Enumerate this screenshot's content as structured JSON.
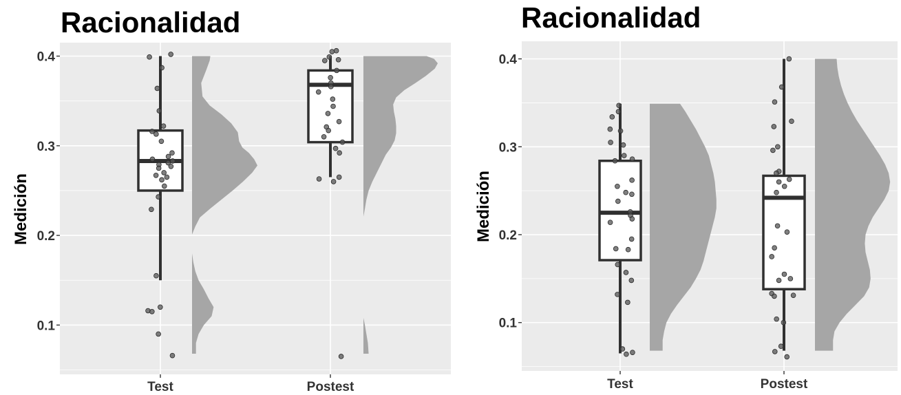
{
  "chart_data": [
    {
      "type": "raincloud",
      "title": "Racionalidad",
      "ylabel": "Medición",
      "xlabel": "",
      "ylim": [
        0.045,
        0.415
      ],
      "yticks": [
        0.1,
        0.2,
        0.3,
        0.4
      ],
      "ytick_labels": [
        "0.1",
        "0.2",
        "0.3",
        "0.4"
      ],
      "grid": true,
      "legend": "none",
      "categories": [
        "Test",
        "Postest"
      ],
      "colors": {
        "panel": "#ebebeb",
        "grid": "#ffffff",
        "density": "#a6a6a6",
        "box": "#ffffff",
        "box_stroke": "#303030",
        "point": "#555555"
      },
      "boxes": [
        {
          "category": "Test",
          "whisker_low": 0.15,
          "q1": 0.25,
          "median": 0.283,
          "q3": 0.317,
          "whisker_high": 0.4
        },
        {
          "category": "Postest",
          "whisker_low": 0.265,
          "q1": 0.304,
          "median": 0.368,
          "q3": 0.384,
          "whisker_high": 0.4
        }
      ],
      "points": [
        [
          0.402,
          0.399,
          0.387,
          0.364,
          0.339,
          0.322,
          0.316,
          0.313,
          0.305,
          0.292,
          0.288,
          0.285,
          0.283,
          0.281,
          0.279,
          0.277,
          0.275,
          0.27,
          0.267,
          0.265,
          0.262,
          0.255,
          0.243,
          0.229,
          0.155,
          0.12,
          0.116,
          0.115,
          0.09,
          0.066
        ],
        [
          0.406,
          0.405,
          0.399,
          0.395,
          0.396,
          0.384,
          0.376,
          0.37,
          0.366,
          0.36,
          0.352,
          0.344,
          0.336,
          0.327,
          0.321,
          0.317,
          0.31,
          0.304,
          0.297,
          0.292,
          0.265,
          0.263,
          0.26,
          0.065
        ]
      ],
      "densities": [
        {
          "category": "Test",
          "segments": [
            {
              "y": [
                0.4,
                0.395,
                0.385,
                0.37,
                0.355,
                0.345,
                0.335,
                0.325,
                0.315,
                0.305,
                0.298,
                0.292,
                0.285,
                0.278,
                0.27,
                0.26,
                0.25,
                0.24,
                0.23,
                0.22,
                0.21,
                0.201
              ],
              "w": [
                0.28,
                0.27,
                0.22,
                0.14,
                0.16,
                0.27,
                0.45,
                0.6,
                0.7,
                0.72,
                0.77,
                0.87,
                0.95,
                1.0,
                0.92,
                0.78,
                0.62,
                0.45,
                0.28,
                0.12,
                0.05,
                0.0
              ]
            },
            {
              "y": [
                0.18,
                0.17,
                0.16,
                0.15,
                0.14,
                0.13,
                0.12,
                0.11,
                0.1,
                0.09,
                0.08,
                0.068
              ],
              "w": [
                0.0,
                0.02,
                0.05,
                0.1,
                0.18,
                0.25,
                0.33,
                0.3,
                0.18,
                0.1,
                0.06,
                0.06
              ]
            }
          ]
        },
        {
          "category": "Postest",
          "segments": [
            {
              "y": [
                0.4,
                0.397,
                0.392,
                0.386,
                0.378,
                0.37,
                0.362,
                0.354,
                0.346,
                0.338,
                0.33,
                0.322,
                0.314,
                0.306,
                0.298,
                0.29,
                0.28,
                0.27,
                0.26,
                0.25,
                0.24,
                0.23,
                0.221
              ],
              "w": [
                0.85,
                0.95,
                1.0,
                0.96,
                0.84,
                0.7,
                0.55,
                0.44,
                0.4,
                0.41,
                0.43,
                0.44,
                0.44,
                0.42,
                0.37,
                0.3,
                0.24,
                0.18,
                0.12,
                0.07,
                0.04,
                0.02,
                0.0
              ]
            },
            {
              "y": [
                0.108,
                0.1,
                0.09,
                0.08,
                0.068
              ],
              "w": [
                0.0,
                0.02,
                0.04,
                0.06,
                0.07
              ]
            }
          ]
        }
      ]
    },
    {
      "type": "raincloud",
      "title": "Racionalidad",
      "ylabel": "Medición",
      "xlabel": "",
      "ylim": [
        0.045,
        0.42
      ],
      "yticks": [
        0.1,
        0.2,
        0.3,
        0.4
      ],
      "ytick_labels": [
        "0.1",
        "0.2",
        "0.3",
        "0.4"
      ],
      "grid": true,
      "legend": "none",
      "categories": [
        "Test",
        "Postest"
      ],
      "colors": {
        "panel": "#ebebeb",
        "grid": "#ffffff",
        "density": "#a6a6a6",
        "box": "#ffffff",
        "box_stroke": "#303030",
        "point": "#555555"
      },
      "boxes": [
        {
          "category": "Test",
          "whisker_low": 0.065,
          "q1": 0.171,
          "median": 0.225,
          "q3": 0.284,
          "whisker_high": 0.349
        },
        {
          "category": "Postest",
          "whisker_low": 0.068,
          "q1": 0.138,
          "median": 0.242,
          "q3": 0.267,
          "whisker_high": 0.4
        }
      ],
      "points": [
        [
          0.347,
          0.34,
          0.334,
          0.32,
          0.318,
          0.305,
          0.302,
          0.29,
          0.286,
          0.284,
          0.262,
          0.255,
          0.248,
          0.246,
          0.238,
          0.226,
          0.222,
          0.218,
          0.214,
          0.195,
          0.184,
          0.183,
          0.166,
          0.157,
          0.148,
          0.132,
          0.123,
          0.07,
          0.066,
          0.064
        ],
        [
          0.4,
          0.368,
          0.351,
          0.329,
          0.323,
          0.3,
          0.296,
          0.272,
          0.27,
          0.263,
          0.26,
          0.255,
          0.248,
          0.21,
          0.203,
          0.185,
          0.175,
          0.155,
          0.15,
          0.148,
          0.133,
          0.131,
          0.13,
          0.104,
          0.1,
          0.073,
          0.067,
          0.061
        ]
      ],
      "densities": [
        {
          "category": "Test",
          "segments": [
            {
              "y": [
                0.349,
                0.34,
                0.33,
                0.32,
                0.31,
                0.3,
                0.29,
                0.28,
                0.27,
                0.26,
                0.25,
                0.24,
                0.23,
                0.22,
                0.21,
                0.2,
                0.19,
                0.18,
                0.17,
                0.16,
                0.15,
                0.14,
                0.13,
                0.12,
                0.11,
                0.1,
                0.09,
                0.08,
                0.068
              ],
              "w": [
                0.4,
                0.47,
                0.54,
                0.61,
                0.67,
                0.73,
                0.78,
                0.81,
                0.84,
                0.86,
                0.87,
                0.88,
                0.88,
                0.86,
                0.83,
                0.8,
                0.77,
                0.74,
                0.71,
                0.67,
                0.61,
                0.54,
                0.45,
                0.36,
                0.28,
                0.22,
                0.19,
                0.17,
                0.17
              ]
            }
          ]
        },
        {
          "category": "Postest",
          "segments": [
            {
              "y": [
                0.4,
                0.39,
                0.38,
                0.37,
                0.36,
                0.35,
                0.34,
                0.33,
                0.32,
                0.31,
                0.3,
                0.29,
                0.28,
                0.27,
                0.26,
                0.25,
                0.24,
                0.23,
                0.22,
                0.21,
                0.2,
                0.19,
                0.18,
                0.17,
                0.16,
                0.15,
                0.14,
                0.13,
                0.12,
                0.11,
                0.1,
                0.09,
                0.08,
                0.068
              ],
              "w": [
                0.3,
                0.31,
                0.33,
                0.36,
                0.4,
                0.45,
                0.51,
                0.58,
                0.66,
                0.74,
                0.82,
                0.9,
                0.97,
                1.02,
                1.04,
                1.02,
                0.96,
                0.88,
                0.8,
                0.74,
                0.7,
                0.69,
                0.7,
                0.73,
                0.76,
                0.77,
                0.75,
                0.68,
                0.56,
                0.44,
                0.34,
                0.27,
                0.25,
                0.25
              ]
            }
          ]
        }
      ]
    }
  ]
}
